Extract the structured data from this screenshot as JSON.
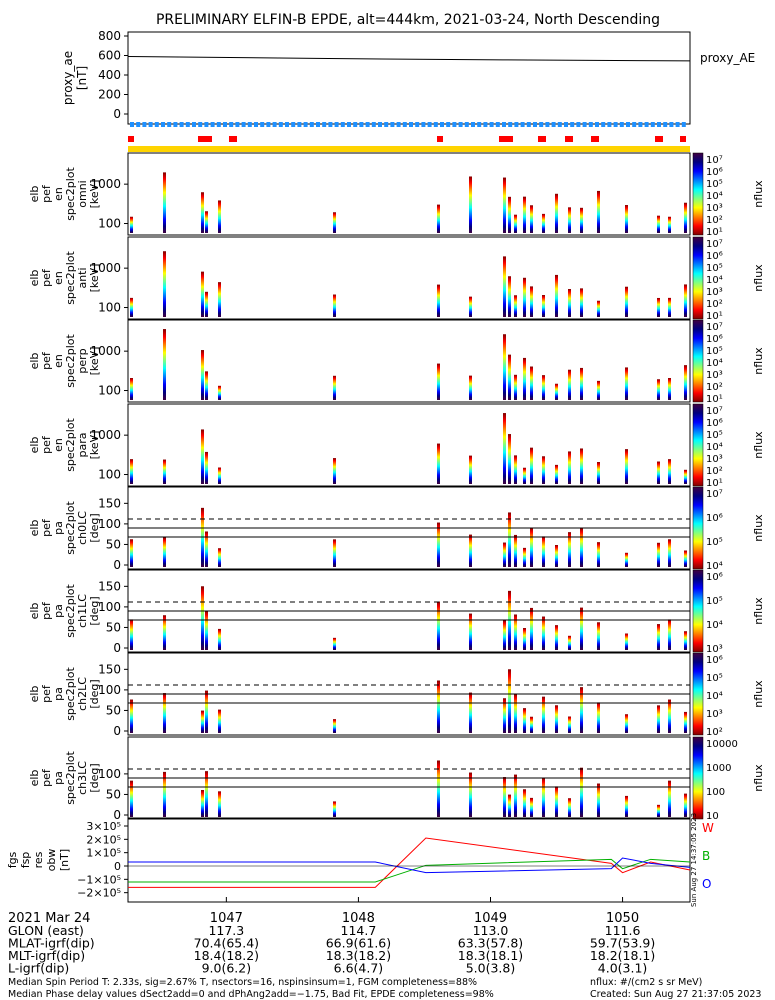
{
  "title": "PRELIMINARY ELFIN-B EPDE, alt=444km, 2021-03-24, North Descending",
  "colors": {
    "red": "#ff0000",
    "blue": "#1e90ff",
    "yellow": "#ffd400",
    "green": "#00b000",
    "darkblue": "#0000ff",
    "frame": "#000000"
  },
  "panels": {
    "ae": {
      "ylabel": [
        "proxy_ae",
        "[nT]"
      ],
      "ticks": [
        "800",
        "600",
        "400",
        "200",
        "0"
      ],
      "right_label": "proxy_AE"
    },
    "spec_en": [
      {
        "ylabel": [
          "elb",
          "pef",
          "en",
          "spec2plot",
          "omni",
          "[keV]"
        ],
        "ticks": [
          "1000",
          "100"
        ],
        "cbar_ticks": [
          "10⁷",
          "10⁶",
          "10⁵",
          "10⁴",
          "10³",
          "10²",
          "10¹"
        ],
        "cbar_label": "nflux"
      },
      {
        "ylabel": [
          "elb",
          "pef",
          "en",
          "spec2plot",
          "anti",
          "[keV]"
        ],
        "ticks": [
          "1000",
          "100"
        ],
        "cbar_ticks": [
          "10⁷",
          "10⁶",
          "10⁵",
          "10⁴",
          "10³",
          "10²",
          "10¹"
        ],
        "cbar_label": "nflux"
      },
      {
        "ylabel": [
          "elb",
          "pef",
          "en",
          "spec2plot",
          "perp",
          "[keV]"
        ],
        "ticks": [
          "1000",
          "100"
        ],
        "cbar_ticks": [
          "10⁷",
          "10⁶",
          "10⁵",
          "10⁴",
          "10³",
          "10²",
          "10¹"
        ],
        "cbar_label": "nflux"
      },
      {
        "ylabel": [
          "elb",
          "pef",
          "en",
          "spec2plot",
          "para",
          "[keV]"
        ],
        "ticks": [
          "1000",
          "100"
        ],
        "cbar_ticks": [
          "10⁷",
          "10⁶",
          "10⁵",
          "10⁴",
          "10³",
          "10²",
          "10¹"
        ],
        "cbar_label": "nflux"
      }
    ],
    "spec_pa": [
      {
        "ylabel": [
          "elb",
          "pef",
          "pa",
          "spec2plot",
          "ch0LC",
          "[deg]"
        ],
        "ticks": [
          "150",
          "100",
          "50",
          "0"
        ],
        "cbar_ticks": [
          "10⁷",
          "10⁶",
          "10⁵",
          "10⁴"
        ],
        "cbar_label": "nflux"
      },
      {
        "ylabel": [
          "elb",
          "pef",
          "pa",
          "spec2plot",
          "ch1LC",
          "[deg]"
        ],
        "ticks": [
          "150",
          "100",
          "50",
          "0"
        ],
        "cbar_ticks": [
          "10⁶",
          "10⁵",
          "10⁴",
          "10³"
        ],
        "cbar_label": "nflux"
      },
      {
        "ylabel": [
          "elb",
          "pef",
          "pa",
          "spec2plot",
          "ch2LC",
          "[deg]"
        ],
        "ticks": [
          "150",
          "100",
          "50",
          "0"
        ],
        "cbar_ticks": [
          "10⁶",
          "10⁵",
          "10⁴",
          "10³",
          "10²"
        ],
        "cbar_label": "nflux"
      },
      {
        "ylabel": [
          "elb",
          "pef",
          "pa",
          "spec2plot",
          "ch3LC",
          "[deg]"
        ],
        "ticks": [
          "100",
          "50",
          "0"
        ],
        "cbar_ticks": [
          "10000",
          "1000",
          "100",
          "10"
        ],
        "cbar_label": "nflux"
      }
    ],
    "fgs": {
      "ylabel": [
        "fgs",
        "fsp",
        "res",
        "obw",
        "[nT]"
      ],
      "ticks": [
        "3×10⁵",
        "2×10⁵",
        "1×10⁵",
        "0",
        "−1×10⁵",
        "−2×10⁵"
      ],
      "legend": [
        "W",
        "B",
        "O"
      ]
    }
  },
  "footer": {
    "date": "2021 Mar 24",
    "rows": [
      {
        "label": "GLON (east)",
        "values": [
          "117.3",
          "114.7",
          "113.0",
          "111.6"
        ]
      },
      {
        "label": "MLAT-igrf(dip)",
        "values": [
          "70.4(65.4)",
          "66.9(61.6)",
          "63.3(57.8)",
          "59.7(53.9)"
        ]
      },
      {
        "label": "MLT-igrf(dip)",
        "values": [
          "18.4(18.2)",
          "18.3(18.2)",
          "18.3(18.1)",
          "18.2(18.1)"
        ]
      },
      {
        "label": "L-igrf(dip)",
        "values": [
          "9.0(6.2)",
          "6.6(4.7)",
          "5.0(3.8)",
          "4.0(3.1)"
        ]
      }
    ],
    "time_ticks": [
      "1047",
      "1048",
      "1049",
      "1050"
    ],
    "note1": "Median Spin Period T: 2.33s, sig=2.67% T, nsectors=16, nspinsinsum=1, FGM completeness=88%",
    "note2": "Median Phase delay values dSect2add=0 and dPhAng2add=−1.75, Bad Fit, EPDE completeness=98%",
    "nflux_units": "nflux: #/(cm2 s sr MeV)",
    "created": "Created: Sun Aug 27 21:37:05 2023",
    "side_stamp": "Sun Aug 27 14:37:05 2023"
  },
  "chart_data": {
    "type": "heatmap",
    "x_time_ticks": [
      "1047",
      "1048",
      "1049",
      "1050"
    ],
    "proxy_ae": {
      "x": [
        "start",
        "1048",
        "1049",
        "end"
      ],
      "values": [
        590,
        570,
        555,
        545
      ],
      "ylim": [
        0,
        800
      ]
    },
    "fgs_series": [
      {
        "name": "W",
        "color": "#ff0000"
      },
      {
        "name": "B",
        "color": "#00b000"
      },
      {
        "name": "O",
        "color": "#0000ff"
      }
    ]
  }
}
